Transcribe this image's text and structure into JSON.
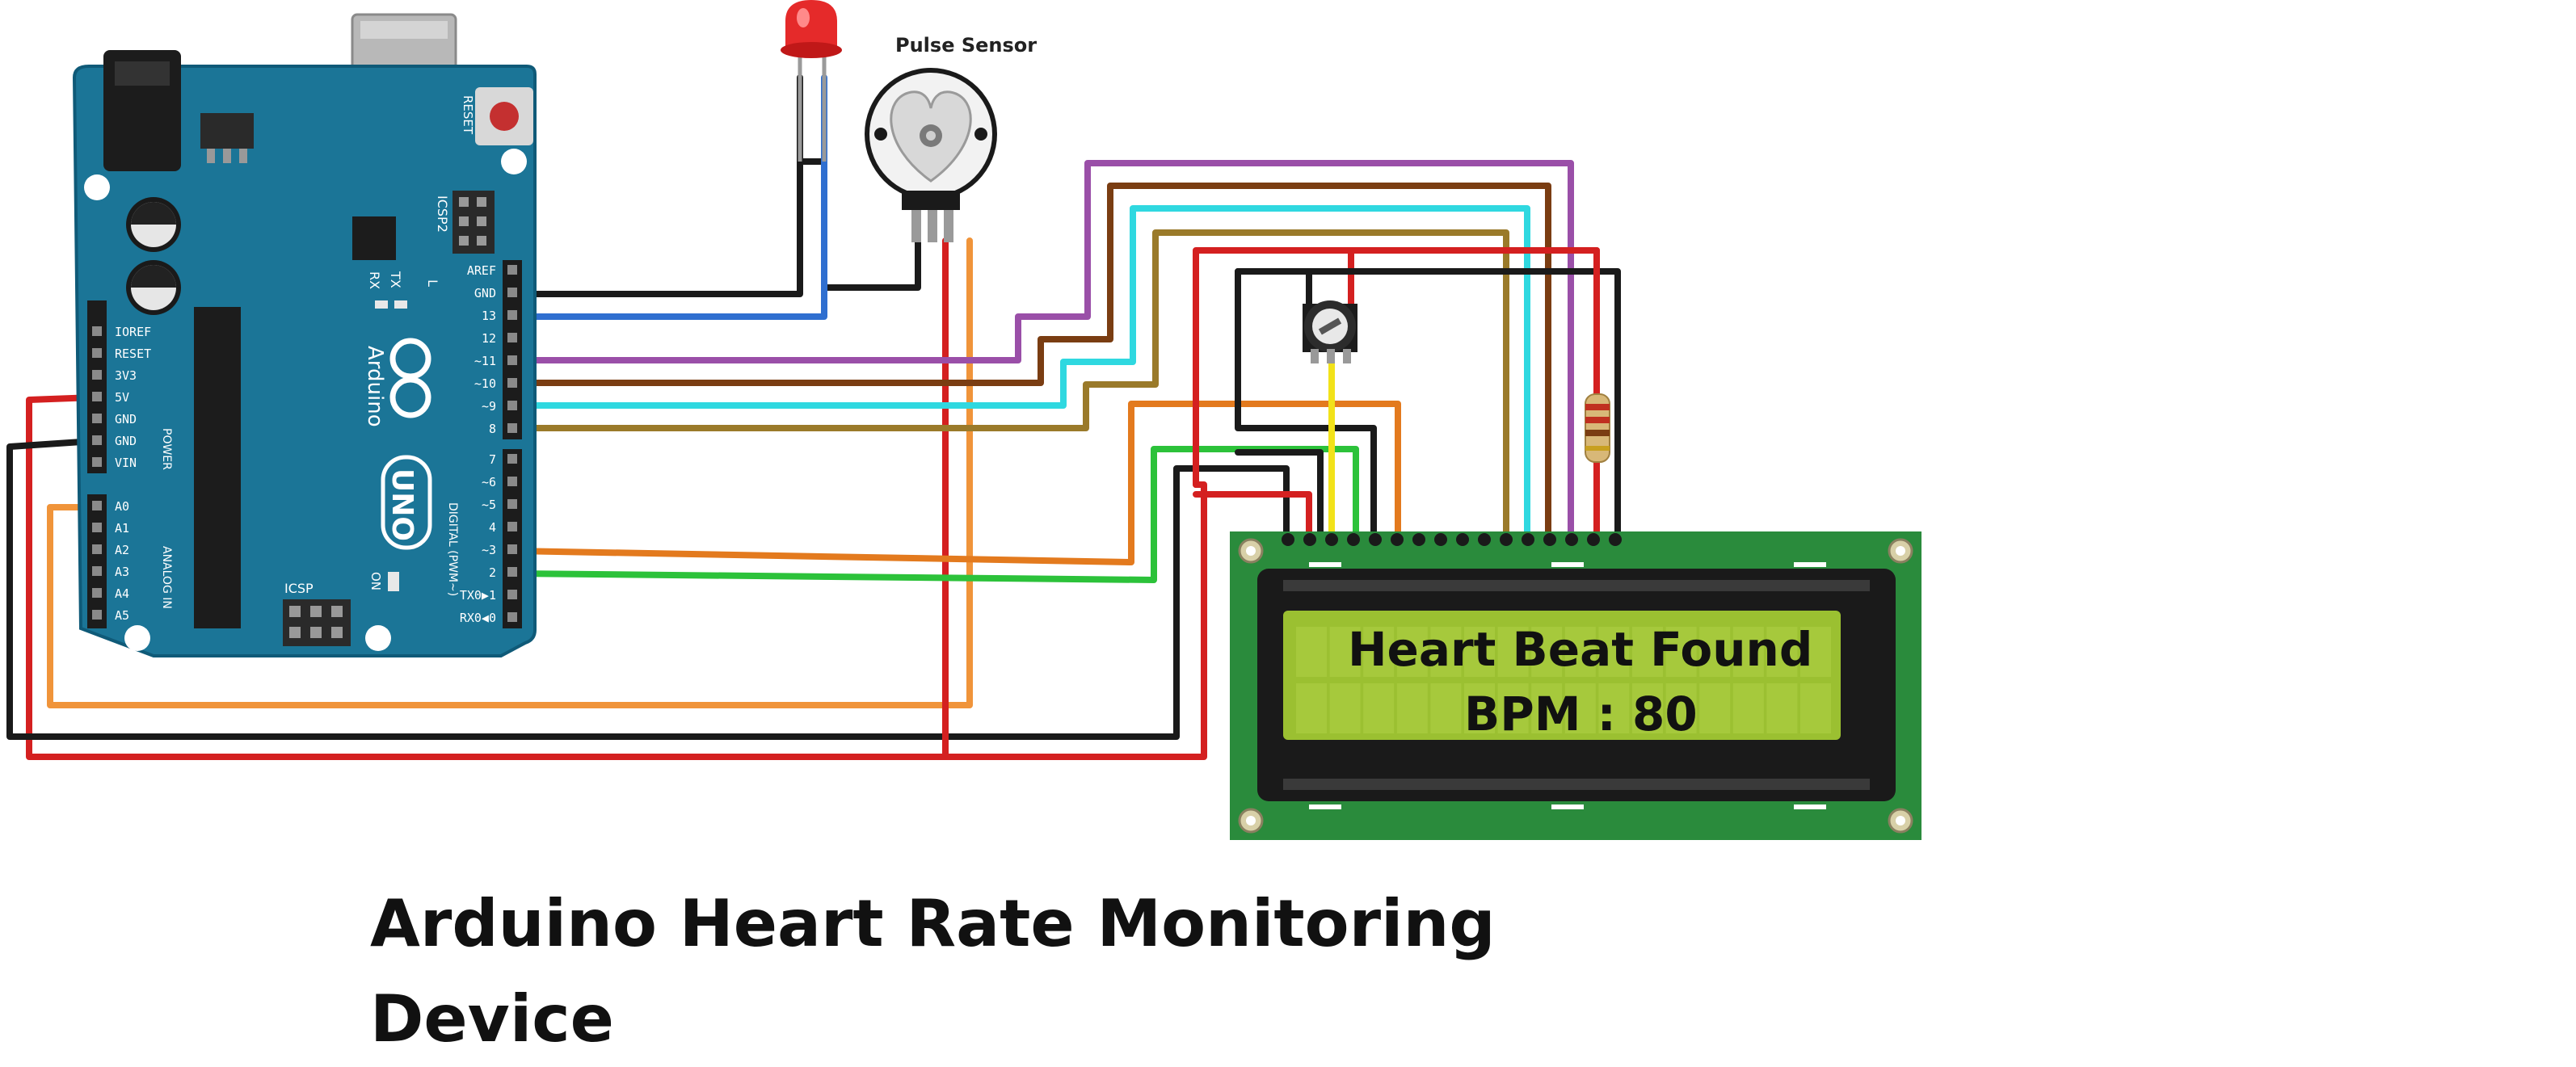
{
  "sensor": {
    "title": "Pulse Sensor"
  },
  "lcd": {
    "line1": "Heart Beat Found",
    "line2": "BPM : 80"
  },
  "caption": {
    "text": "Arduino Heart Rate Monitoring Device"
  },
  "board": {
    "brand": "Arduino",
    "model": "UNO",
    "reset_label": "RESET",
    "icsp_label": "ICSP",
    "icsp2_label": "ICSP2",
    "tx_label": "TX",
    "rx_label": "RX",
    "l_label": "L",
    "on_label": "ON",
    "power_label": "POWER",
    "analog_label": "ANALOG IN",
    "digital_label": "DIGITAL (PWM~)",
    "power_pins": [
      "IOREF",
      "RESET",
      "3V3",
      "5V",
      "GND",
      "GND",
      "VIN"
    ],
    "analog_pins": [
      "A0",
      "A1",
      "A2",
      "A3",
      "A4",
      "A5"
    ],
    "digital_top": [
      "AREF",
      "GND",
      "13",
      "12",
      "~11",
      "~10",
      "~9",
      "8"
    ],
    "digital_bottom": [
      "7",
      "~6",
      "~5",
      "4",
      "~3",
      "2",
      "TX0▶1",
      "RX0◀0"
    ]
  },
  "colors": {
    "board": "#1b7597",
    "board_edge": "#0f5a78",
    "lcd_pcb": "#2a8b3c",
    "lcd_screen": "#9bc031",
    "wire_red": "#d42020",
    "wire_black": "#1a1a1a",
    "wire_blue": "#2f6fd0",
    "wire_purple": "#9a4fa8",
    "wire_brown": "#7a3d12",
    "wire_cyan": "#2fd8e0",
    "wire_olive": "#9a7a2a",
    "wire_orange": "#e37a1e",
    "wire_green": "#2cc23a",
    "wire_yellow": "#f2e21a",
    "wire_lightorange": "#f0943a"
  }
}
